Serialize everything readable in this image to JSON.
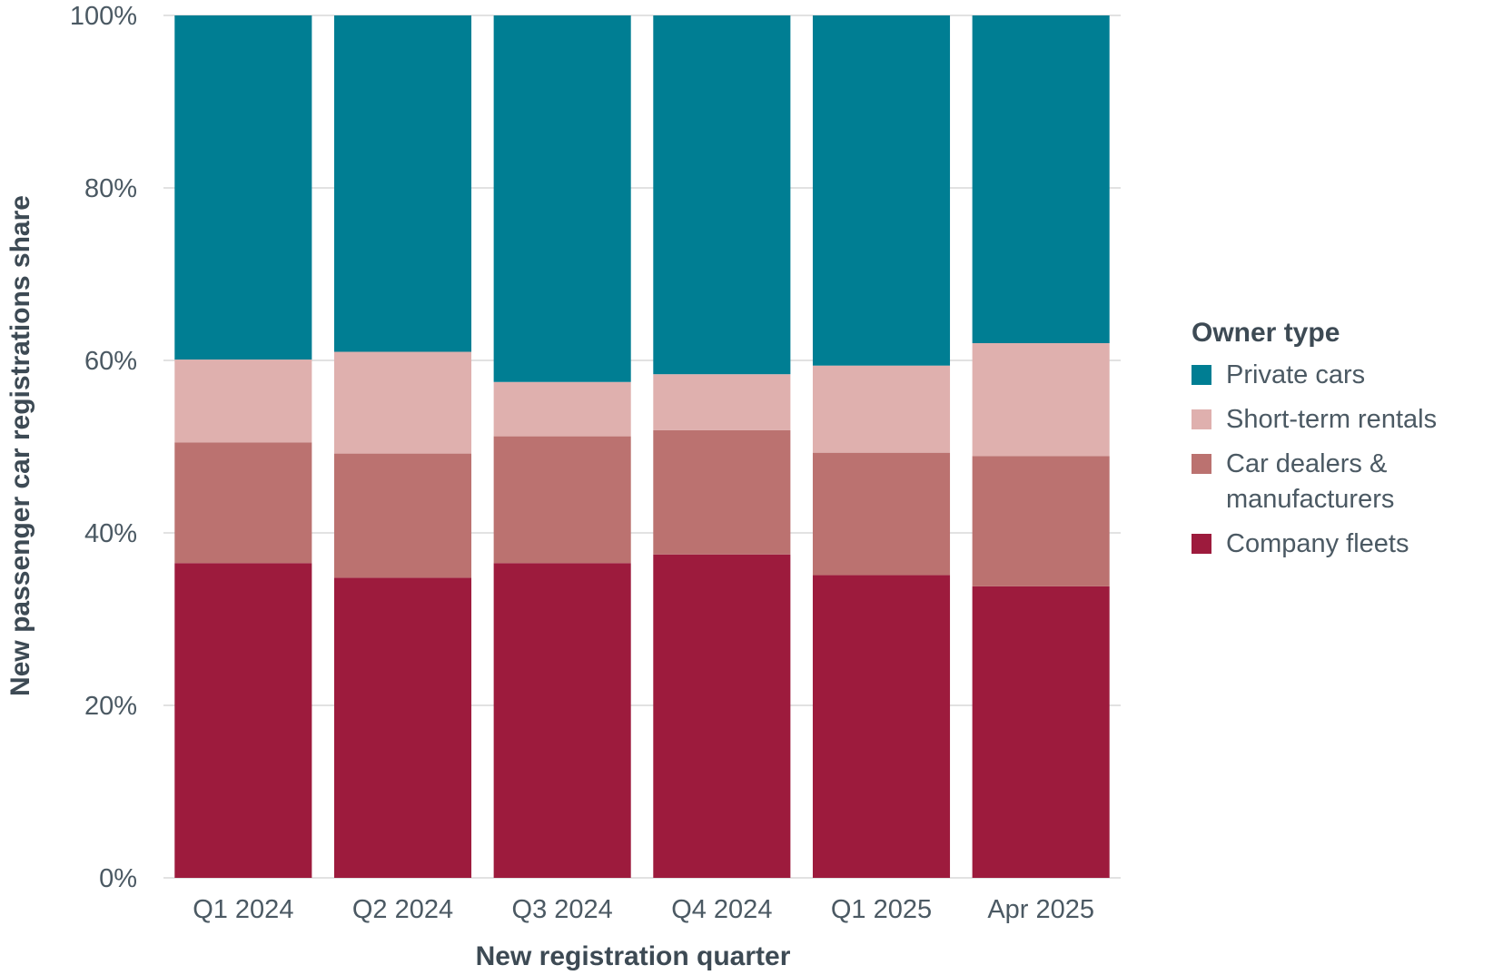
{
  "chart_data": {
    "type": "bar",
    "stacked": true,
    "categories": [
      "Q1 2024",
      "Q2 2024",
      "Q3 2024",
      "Q4 2024",
      "Q1 2025",
      "Apr 2025"
    ],
    "series": [
      {
        "name": "Company fleets",
        "color": "#9d1b3d",
        "values": [
          36.5,
          34.8,
          36.5,
          37.5,
          35.1,
          33.8
        ]
      },
      {
        "name": "Car dealers & manufacturers",
        "color": "#bb7270",
        "values": [
          14.0,
          14.4,
          14.7,
          14.4,
          14.2,
          15.1
        ]
      },
      {
        "name": "Short-term rentals",
        "color": "#dfb0ae",
        "values": [
          9.6,
          11.8,
          6.3,
          6.5,
          10.1,
          13.1
        ]
      },
      {
        "name": "Private cars",
        "color": "#007e93",
        "values": [
          39.9,
          39.0,
          42.5,
          41.6,
          40.6,
          38.0
        ]
      }
    ],
    "ylabel": "New passenger car registrations share",
    "xlabel": "New registration quarter",
    "yticks": [
      "0%",
      "20%",
      "40%",
      "60%",
      "80%",
      "100%"
    ],
    "ylim": [
      0,
      100
    ],
    "grid": true,
    "legend": {
      "title": "Owner type",
      "position": "right",
      "items": [
        "Private cars",
        "Short-term rentals",
        "Car dealers & manufacturers",
        "Company fleets"
      ]
    }
  }
}
